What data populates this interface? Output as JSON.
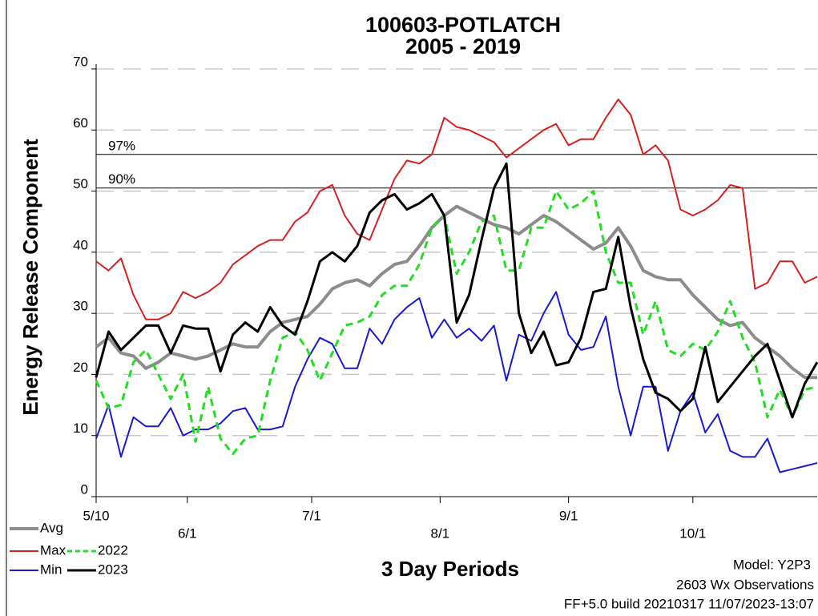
{
  "chart_data": {
    "type": "line",
    "title": "100603-POTLATCH",
    "subtitle": "2005 - 2019",
    "y_label": "Energy Release Component",
    "x_label": "3 Day Periods",
    "footer": [
      "Model: Y2P3",
      "2603 Wx Observations",
      "FF+5.0 build 20210317 11/07/2023-13:07"
    ],
    "ylim": [
      0,
      70
    ],
    "yticks": [
      0,
      10,
      20,
      30,
      40,
      50,
      60,
      70
    ],
    "xlim": [
      0,
      174
    ],
    "xticks": [
      {
        "value": 0,
        "label": "5/10"
      },
      {
        "value": 22,
        "label": "6/1"
      },
      {
        "value": 52,
        "label": "7/1"
      },
      {
        "value": 83,
        "label": "8/1"
      },
      {
        "value": 114,
        "label": "9/1"
      },
      {
        "value": 144,
        "label": "10/1"
      }
    ],
    "grid": true,
    "legend": "bottom-left",
    "reference_lines": [
      {
        "label": "97%",
        "value": 56
      },
      {
        "label": "90%",
        "value": 50.5
      }
    ],
    "x": [
      0,
      3,
      6,
      9,
      12,
      15,
      18,
      21,
      24,
      27,
      30,
      33,
      36,
      39,
      42,
      45,
      48,
      51,
      54,
      57,
      60,
      63,
      66,
      69,
      72,
      75,
      78,
      81,
      84,
      87,
      90,
      93,
      96,
      99,
      102,
      105,
      108,
      111,
      114,
      117,
      120,
      123,
      126,
      129,
      132,
      135,
      138,
      141,
      144,
      147,
      150,
      153,
      156,
      159,
      162,
      165,
      168,
      171,
      174
    ],
    "series": [
      {
        "name": "Avg",
        "color": "#8c8c8c",
        "width": 4,
        "dashed": false,
        "values": [
          24.5,
          26,
          23.5,
          23,
          21,
          22,
          23.5,
          23,
          22.5,
          23,
          24,
          25,
          24.5,
          24.5,
          27,
          28.5,
          29,
          29.5,
          31.5,
          34,
          35,
          35.5,
          34.5,
          36.5,
          38,
          38.5,
          41,
          44,
          46,
          47.5,
          46.5,
          45.5,
          44.5,
          44,
          43,
          44.5,
          46,
          45,
          43.5,
          42,
          40.5,
          41.5,
          44,
          41,
          37,
          36,
          35.5,
          35.5,
          33,
          31,
          29,
          28,
          28.5,
          26,
          24.5,
          23,
          21,
          19.5,
          19.5
        ]
      },
      {
        "name": "Max",
        "color": "#d42020",
        "width": 2,
        "dashed": false,
        "values": [
          38.5,
          37,
          39,
          33,
          29,
          29,
          30,
          33.5,
          32.5,
          33.5,
          35,
          38,
          39.5,
          41,
          42,
          42,
          45,
          46.5,
          50,
          51,
          46,
          43,
          42,
          47,
          52,
          55,
          54.5,
          56,
          62,
          60.5,
          60,
          59,
          58,
          55.5,
          57,
          58.5,
          60,
          61,
          57.5,
          58.5,
          58.5,
          62,
          65,
          62.5,
          56,
          57.5,
          55,
          47,
          46,
          47,
          48.5,
          51,
          50.5,
          34,
          35,
          38.5,
          38.5,
          35,
          36
        ]
      },
      {
        "name": "Min",
        "color": "#1a1acc",
        "width": 2,
        "dashed": false,
        "values": [
          9.5,
          15,
          6.5,
          13,
          11.5,
          11.5,
          14.5,
          10,
          11,
          11,
          12,
          14,
          14.5,
          11,
          11,
          11.5,
          18,
          22.5,
          26,
          25,
          21,
          21,
          27.5,
          25,
          29,
          31,
          32.5,
          26,
          29,
          26,
          27.5,
          25.5,
          28,
          19,
          26.5,
          25.5,
          30,
          33.5,
          26.5,
          24,
          24.5,
          29.5,
          18,
          10,
          18,
          18,
          7.5,
          14,
          17,
          10.5,
          13.5,
          7.5,
          6.5,
          6.5,
          9.5,
          4,
          4.5,
          5,
          5.5
        ]
      },
      {
        "name": "2022",
        "color": "#22dd22",
        "width": 3,
        "dashed": true,
        "values": [
          19,
          14.5,
          15,
          22,
          24,
          20,
          16,
          20,
          9,
          18,
          9.5,
          7,
          9.5,
          10,
          19,
          26,
          27,
          24,
          19,
          23.5,
          28,
          28.5,
          29.5,
          33,
          34.5,
          34.5,
          38,
          44,
          46,
          36.5,
          40,
          45,
          46,
          37,
          37,
          44,
          44,
          50,
          47,
          48,
          50,
          40,
          35,
          35,
          26.5,
          32,
          24,
          23,
          25,
          24,
          27,
          32,
          26,
          22,
          13,
          17.5,
          13,
          17.5,
          18
        ]
      },
      {
        "name": "2023",
        "color": "#000000",
        "width": 3,
        "dashed": false,
        "values": [
          19.5,
          27,
          24,
          26,
          28,
          28,
          23.5,
          28,
          27.5,
          27.5,
          20.5,
          26.5,
          28.5,
          27,
          31,
          28,
          26.5,
          32,
          38.5,
          40,
          38.5,
          41,
          46.5,
          48.5,
          49.5,
          47,
          48,
          49.5,
          46,
          28.5,
          33,
          42,
          50.5,
          54.5,
          30,
          23.5,
          27,
          21.5,
          22,
          26,
          33.5,
          34,
          42.5,
          31,
          22.5,
          17,
          16,
          14,
          16,
          24.5,
          15.5,
          18,
          20.5,
          23,
          25,
          19,
          13,
          18.5,
          22
        ]
      }
    ]
  }
}
